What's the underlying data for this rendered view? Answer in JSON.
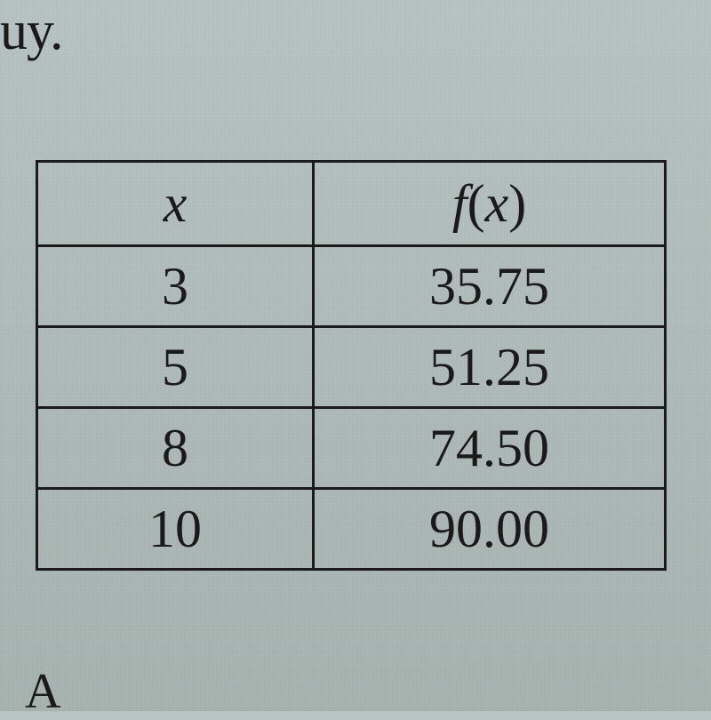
{
  "fragment_top": "uy.",
  "table": {
    "type": "table",
    "columns": [
      {
        "label": "x",
        "key": "x"
      },
      {
        "label": "f(x)",
        "key": "fx"
      }
    ],
    "rows": [
      {
        "x": "3",
        "fx": "35.75"
      },
      {
        "x": "5",
        "fx": "51.25"
      },
      {
        "x": "8",
        "fx": "74.50"
      },
      {
        "x": "10",
        "fx": "90.00"
      }
    ],
    "border_color": "#1a1a1a",
    "text_color": "#1a1a1a",
    "font_family": "Times New Roman",
    "font_size_pt": 44,
    "background": "transparent",
    "column_widths": [
      "44%",
      "56%"
    ]
  },
  "fragment_bottom": "A"
}
